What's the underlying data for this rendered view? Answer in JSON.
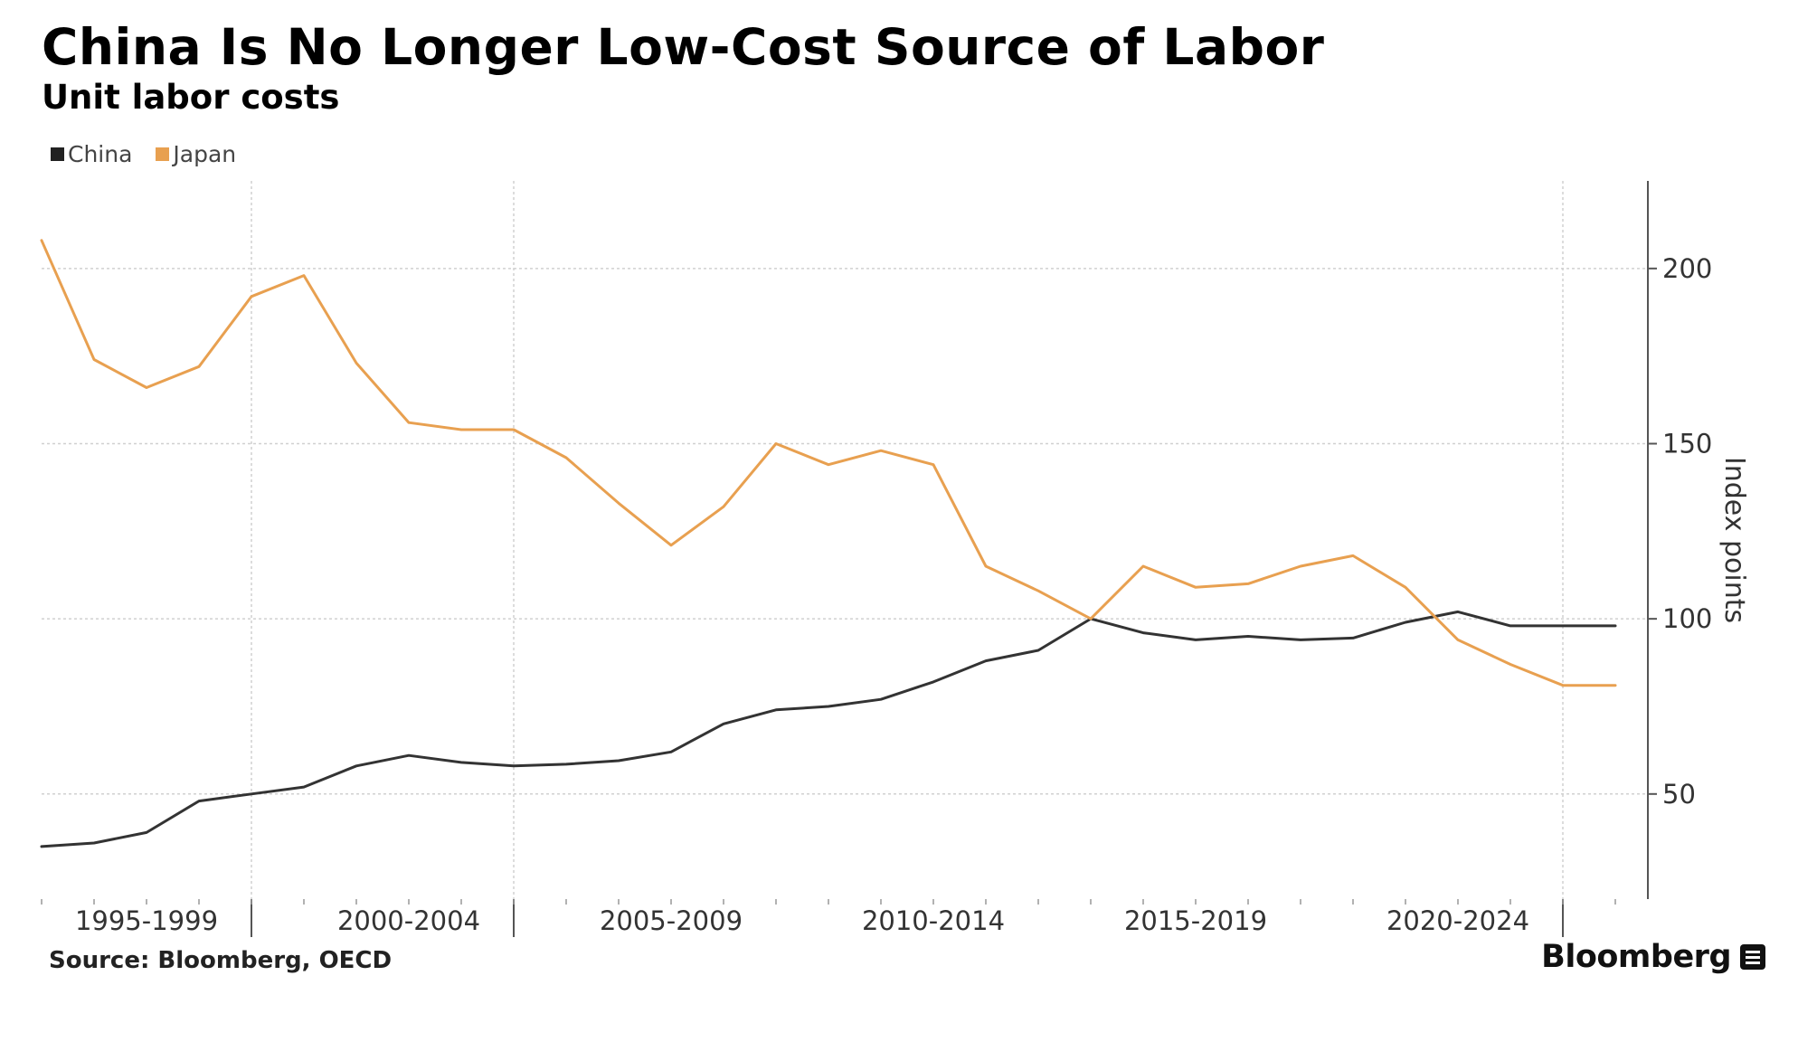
{
  "chart_data": {
    "type": "line",
    "title": "China Is No Longer Low-Cost Source of Labor",
    "subtitle": "Unit labor costs",
    "ylabel": "Index points",
    "ylim": [
      20,
      225
    ],
    "yticks": [
      50,
      100,
      150,
      200
    ],
    "x": [
      1995,
      1996,
      1997,
      1998,
      1999,
      2000,
      2001,
      2002,
      2003,
      2004,
      2005,
      2006,
      2007,
      2008,
      2009,
      2010,
      2011,
      2012,
      2013,
      2014,
      2015,
      2016,
      2017,
      2018,
      2019,
      2020,
      2021,
      2022,
      2023,
      2024,
      2025
    ],
    "x_category_labels": [
      "1995-1999",
      "2000-2004",
      "2005-2009",
      "2010-2014",
      "2015-2019",
      "2020-2024"
    ],
    "legend_position": "top-left",
    "grid": true,
    "colors": {
      "China": "#333333",
      "Japan": "#e8a050"
    },
    "series": [
      {
        "name": "China",
        "values": [
          35,
          36,
          39,
          48,
          50,
          52,
          58,
          61,
          59,
          58,
          58.5,
          59.5,
          62,
          70,
          74,
          75,
          77,
          82,
          88,
          91,
          100,
          96,
          94,
          95,
          94,
          94.5,
          99,
          102,
          98,
          98,
          98
        ]
      },
      {
        "name": "Japan",
        "values": [
          208,
          174,
          166,
          172,
          192,
          198,
          173,
          156,
          154,
          154,
          146,
          133,
          121,
          132,
          150,
          144,
          148,
          144,
          115,
          108,
          100,
          115,
          109,
          110,
          115,
          118,
          109,
          94,
          87,
          81,
          81
        ]
      }
    ]
  },
  "legend": {
    "china": "China",
    "japan": "Japan"
  },
  "footer": {
    "source": "Source: Bloomberg, OECD",
    "brand": "Bloomberg"
  }
}
